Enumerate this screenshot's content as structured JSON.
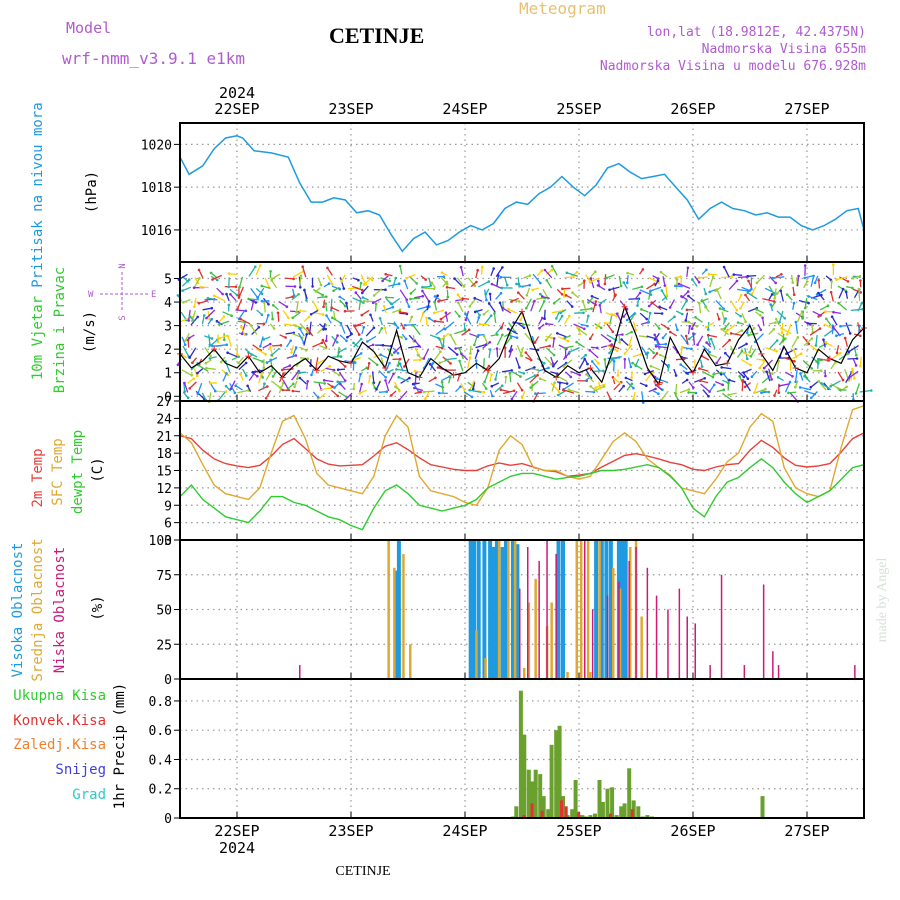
{
  "header": {
    "model_label": "Model",
    "model_value": "wrf-nmm_v3.9.1  e1km",
    "station": "CETINJE",
    "meteogram": "Meteogram",
    "lonlat": "lon,lat (18.9812E, 42.4375N)",
    "elevation": "Nadmorska Visina 655m",
    "elevation_model": "Nadmorska Visina u modelu 676.928m",
    "year": "2024",
    "footer_station": "CETINJE",
    "watermark": "made by Angel"
  },
  "colors": {
    "pressure": "#1e9be0",
    "t2m": "#e8403a",
    "sfc": "#e0a830",
    "dewpt": "#2fcc2f",
    "cloud_high": "#1e9be0",
    "cloud_mid": "#e0a830",
    "cloud_low": "#cc1a7a",
    "precip_total": "#6aa02e",
    "precip_conv": "#e83030",
    "model_label": "#b05ad0",
    "meteogram": "#e8c070",
    "wind_line": "#000000"
  },
  "chart_data": [
    {
      "type": "line",
      "id": "pressure",
      "ylabel_title": "Pritisak na nivou mora",
      "ylabel_unit": "(hPa)",
      "categories": [
        "22SEP",
        "23SEP",
        "24SEP",
        "25SEP",
        "26SEP",
        "27SEP"
      ],
      "xlim_days": [
        -0.5,
        5.5
      ],
      "ylim": [
        1014.5,
        1021
      ],
      "yticks": [
        "1016",
        "1018",
        "1020"
      ],
      "series": [
        {
          "x": [
            -0.5,
            -0.42,
            -0.3,
            -0.2,
            -0.1,
            0,
            0.05,
            0.15,
            0.3,
            0.45,
            0.55,
            0.65,
            0.75,
            0.85,
            0.95,
            1.05,
            1.15,
            1.25,
            1.35,
            1.45,
            1.55,
            1.65,
            1.75,
            1.85,
            1.95,
            2.05,
            2.15,
            2.25,
            2.35,
            2.45,
            2.55,
            2.65,
            2.75,
            2.85,
            2.95,
            3.05,
            3.15,
            3.25,
            3.35,
            3.45,
            3.55,
            3.65,
            3.75,
            3.85,
            3.95,
            4.05,
            4.15,
            4.25,
            4.35,
            4.45,
            4.55,
            4.65,
            4.75,
            4.85,
            4.95,
            5.05,
            5.15,
            5.25,
            5.35,
            5.45,
            5.5
          ],
          "values": [
            1019.4,
            1018.6,
            1019.0,
            1019.8,
            1020.3,
            1020.4,
            1020.3,
            1019.7,
            1019.6,
            1019.4,
            1018.2,
            1017.3,
            1017.3,
            1017.5,
            1017.4,
            1016.8,
            1016.9,
            1016.7,
            1015.8,
            1015.0,
            1015.6,
            1015.9,
            1015.3,
            1015.5,
            1015.9,
            1016.2,
            1016.0,
            1016.3,
            1017.0,
            1017.3,
            1017.2,
            1017.7,
            1018.0,
            1018.5,
            1018.0,
            1017.6,
            1018.1,
            1018.9,
            1019.1,
            1018.7,
            1018.4,
            1018.5,
            1018.6,
            1018.0,
            1017.4,
            1016.5,
            1017.0,
            1017.3,
            1017.0,
            1016.9,
            1016.7,
            1016.8,
            1016.6,
            1016.6,
            1016.2,
            1016.0,
            1016.2,
            1016.5,
            1016.9,
            1017.0,
            1016.0
          ],
          "name": ""
        }
      ]
    },
    {
      "type": "line",
      "id": "wind",
      "ylabel_title": "10m Vjetar",
      "ylabel_sub": "Brzina i Pravac",
      "ylabel_unit": "(m/s)",
      "compass": {
        "n": "N",
        "s": "S",
        "w": "W",
        "e": "E"
      },
      "ylim": [
        -0.2,
        5.7
      ],
      "yticks": [
        "0",
        "1",
        "2",
        "3",
        "4",
        "5"
      ],
      "series": [
        {
          "x": [
            -0.5,
            -0.4,
            -0.3,
            -0.2,
            -0.1,
            0,
            0.1,
            0.2,
            0.3,
            0.4,
            0.5,
            0.6,
            0.7,
            0.8,
            0.9,
            1.0,
            1.1,
            1.2,
            1.3,
            1.4,
            1.5,
            1.6,
            1.7,
            1.8,
            1.9,
            2.0,
            2.1,
            2.2,
            2.3,
            2.4,
            2.5,
            2.6,
            2.7,
            2.8,
            2.9,
            3.0,
            3.1,
            3.2,
            3.3,
            3.4,
            3.5,
            3.6,
            3.7,
            3.8,
            3.9,
            4.0,
            4.1,
            4.2,
            4.3,
            4.4,
            4.5,
            4.6,
            4.7,
            4.8,
            4.9,
            5.0,
            5.1,
            5.2,
            5.3,
            5.4,
            5.5
          ],
          "values": [
            1.8,
            1.2,
            1.5,
            2.0,
            1.4,
            1.2,
            1.7,
            1.0,
            1.3,
            0.8,
            1.3,
            1.6,
            1.1,
            1.7,
            1.5,
            1.4,
            2.3,
            1.9,
            1.2,
            2.8,
            1.0,
            0.8,
            1.6,
            1.2,
            0.9,
            1.0,
            1.4,
            1.1,
            1.6,
            2.8,
            3.6,
            2.2,
            1.1,
            0.8,
            1.3,
            1.0,
            1.2,
            0.6,
            2.0,
            3.8,
            2.6,
            1.2,
            0.5,
            2.5,
            1.6,
            1.0,
            2.0,
            1.3,
            1.4,
            2.4,
            3.0,
            1.8,
            1.1,
            2.1,
            1.2,
            1.0,
            2.0,
            1.6,
            1.4,
            2.4,
            2.9
          ],
          "name": ""
        }
      ]
    },
    {
      "type": "line",
      "id": "temperature",
      "ylabel_lines": [
        "2m Temp",
        "SFC Temp",
        "dewpt Temp"
      ],
      "ylabel_unit": "(C)",
      "ylim": [
        3,
        27
      ],
      "yticks": [
        "3",
        "6",
        "9",
        "12",
        "15",
        "18",
        "21",
        "24",
        "27"
      ],
      "x": [
        -0.5,
        -0.4,
        -0.3,
        -0.2,
        -0.1,
        0,
        0.1,
        0.2,
        0.3,
        0.4,
        0.5,
        0.6,
        0.7,
        0.8,
        0.9,
        1.0,
        1.1,
        1.2,
        1.3,
        1.4,
        1.5,
        1.6,
        1.7,
        1.8,
        1.9,
        2.0,
        2.1,
        2.2,
        2.3,
        2.4,
        2.5,
        2.6,
        2.7,
        2.8,
        2.9,
        3.0,
        3.1,
        3.2,
        3.3,
        3.4,
        3.5,
        3.6,
        3.7,
        3.8,
        3.9,
        4.0,
        4.1,
        4.2,
        4.3,
        4.4,
        4.5,
        4.6,
        4.7,
        4.8,
        4.9,
        5.0,
        5.1,
        5.2,
        5.3,
        5.4,
        5.5
      ],
      "series": [
        {
          "name": "2m Temp",
          "values": [
            21.0,
            20.5,
            18.5,
            17.0,
            16.2,
            15.8,
            15.5,
            15.9,
            17.5,
            19.5,
            20.5,
            18.8,
            17.0,
            16.1,
            15.8,
            15.9,
            16.0,
            17.5,
            19.2,
            19.8,
            18.6,
            17.2,
            16.0,
            15.6,
            15.2,
            15.0,
            15.0,
            15.8,
            16.3,
            15.9,
            16.2,
            15.6,
            15.0,
            14.8,
            14.0,
            14.2,
            14.5,
            15.6,
            16.6,
            17.6,
            17.9,
            17.5,
            17.0,
            16.4,
            16.0,
            15.2,
            15.0,
            15.6,
            16.0,
            16.2,
            18.5,
            20.2,
            19.0,
            17.2,
            15.9,
            15.6,
            15.8,
            16.2,
            18.2,
            20.5,
            21.5
          ]
        },
        {
          "name": "SFC Temp",
          "values": [
            21.5,
            19.8,
            16.0,
            12.5,
            11.0,
            10.5,
            10.0,
            12.0,
            18.0,
            23.5,
            24.5,
            20.5,
            14.5,
            12.5,
            12.0,
            11.5,
            11.0,
            14.0,
            21.0,
            24.5,
            22.5,
            14.0,
            11.5,
            11.0,
            10.5,
            9.5,
            9.0,
            12.0,
            18.5,
            21.0,
            19.5,
            15.5,
            15.0,
            15.0,
            14.0,
            13.5,
            14.0,
            17.0,
            20.0,
            21.5,
            20.0,
            17.0,
            15.5,
            14.2,
            12.0,
            11.5,
            11.0,
            13.5,
            16.5,
            18.0,
            22.5,
            24.8,
            23.5,
            15.5,
            12.0,
            11.0,
            10.5,
            11.5,
            19.0,
            25.5,
            26.2
          ]
        },
        {
          "name": "dewpt Temp",
          "values": [
            10.5,
            12.5,
            10.0,
            8.5,
            7.0,
            6.5,
            6.0,
            8.0,
            10.5,
            10.5,
            9.5,
            9.0,
            8.0,
            7.0,
            6.5,
            5.5,
            4.8,
            8.5,
            11.5,
            12.5,
            11.0,
            9.0,
            8.5,
            8.0,
            8.5,
            9.0,
            10.0,
            12.0,
            13.0,
            14.0,
            14.5,
            14.5,
            14.0,
            13.5,
            13.8,
            14.0,
            14.5,
            15.0,
            15.0,
            15.2,
            15.6,
            16.0,
            15.5,
            14.0,
            12.0,
            8.5,
            7.0,
            10.5,
            13.0,
            13.8,
            15.5,
            17.0,
            15.5,
            13.0,
            11.0,
            9.5,
            10.5,
            11.5,
            13.5,
            15.5,
            16.0
          ]
        }
      ]
    },
    {
      "type": "bar",
      "id": "clouds",
      "ylabel_lines": [
        "Visoka Oblacnost",
        "Srednja Oblacnost",
        "Niska Oblacnost"
      ],
      "ylabel_unit": "(%)",
      "ylim": [
        0,
        100
      ],
      "yticks": [
        "0",
        "25",
        "50",
        "75",
        "100"
      ],
      "series": [
        {
          "name": "Visoka Oblacnost",
          "x": [
            1.4,
            1.42,
            2.05,
            2.08,
            2.12,
            2.17,
            2.22,
            2.25,
            2.28,
            2.33,
            2.36,
            2.42,
            2.46,
            2.82,
            2.86,
            3.15,
            3.2,
            3.24,
            3.28,
            3.35,
            3.38,
            3.41
          ],
          "values": [
            78,
            100,
            100,
            100,
            100,
            100,
            100,
            95,
            100,
            95,
            100,
            100,
            97,
            100,
            100,
            100,
            100,
            100,
            100,
            100,
            100,
            100
          ]
        },
        {
          "name": "Srednja Oblacnost",
          "x": [
            1.33,
            1.38,
            1.46,
            1.52,
            2.1,
            2.18,
            2.3,
            2.38,
            2.44,
            2.52,
            2.56,
            2.62,
            2.72,
            2.76,
            2.9,
            2.98,
            3.02,
            3.08,
            3.1,
            3.18,
            3.3,
            3.36,
            3.45,
            3.5,
            3.55
          ],
          "values": [
            100,
            80,
            90,
            25,
            35,
            15,
            100,
            100,
            100,
            8,
            55,
            72,
            38,
            55,
            5,
            100,
            100,
            100,
            5,
            100,
            80,
            65,
            95,
            100,
            45
          ]
        },
        {
          "name": "Niska Oblacnost",
          "x": [
            -0.1,
            0.55,
            2.48,
            2.55,
            2.65,
            2.72,
            2.8,
            3.05,
            3.12,
            3.25,
            3.35,
            3.44,
            3.5,
            3.6,
            3.68,
            3.78,
            3.88,
            3.95,
            4.02,
            4.15,
            4.25,
            4.45,
            4.62,
            4.7,
            4.75,
            5.42
          ],
          "values": [
            0,
            10,
            65,
            95,
            85,
            100,
            90,
            100,
            50,
            60,
            70,
            85,
            95,
            80,
            60,
            50,
            65,
            45,
            40,
            10,
            75,
            10,
            68,
            20,
            10,
            10
          ]
        }
      ]
    },
    {
      "type": "bar",
      "id": "precip",
      "ylabel_unit": "1hr Precip (mm)",
      "legend": [
        "Ukupna  Kisa",
        "Konvek.Kisa",
        "Zaledj.Kisa",
        "Snijeg",
        "Grad"
      ],
      "ylim": [
        0,
        0.95
      ],
      "yticks": [
        "0",
        "0.2",
        "0.4",
        "0.6",
        "0.8"
      ],
      "series": [
        {
          "name": "Ukupna  Kisa",
          "x": [
            2.42,
            2.45,
            2.49,
            2.52,
            2.56,
            2.59,
            2.62,
            2.66,
            2.69,
            2.73,
            2.76,
            2.8,
            2.83,
            2.86,
            2.9,
            2.94,
            2.97,
            3.0,
            3.03,
            3.06,
            3.1,
            3.14,
            3.18,
            3.21,
            3.25,
            3.29,
            3.33,
            3.37,
            3.4,
            3.44,
            3.48,
            3.52,
            3.56,
            3.6,
            3.64,
            4.61
          ],
          "values": [
            0.01,
            0.08,
            0.87,
            0.57,
            0.33,
            0.25,
            0.33,
            0.3,
            0.15,
            0.06,
            0.5,
            0.6,
            0.63,
            0.15,
            0.02,
            0.06,
            0.26,
            0.02,
            0.02,
            0.01,
            0.02,
            0.03,
            0.26,
            0.11,
            0.2,
            0.21,
            0.02,
            0.08,
            0.1,
            0.34,
            0.12,
            0.08,
            0.01,
            0.02,
            0.01,
            0.15
          ]
        },
        {
          "name": "Konvek.Kisa",
          "x": [
            2.5,
            2.57,
            2.66,
            2.83,
            2.87,
            2.98,
            3.26,
            3.45
          ],
          "values": [
            0.02,
            0.1,
            0.05,
            0.12,
            0.08,
            0.04,
            0.03,
            0.06
          ]
        }
      ]
    }
  ]
}
